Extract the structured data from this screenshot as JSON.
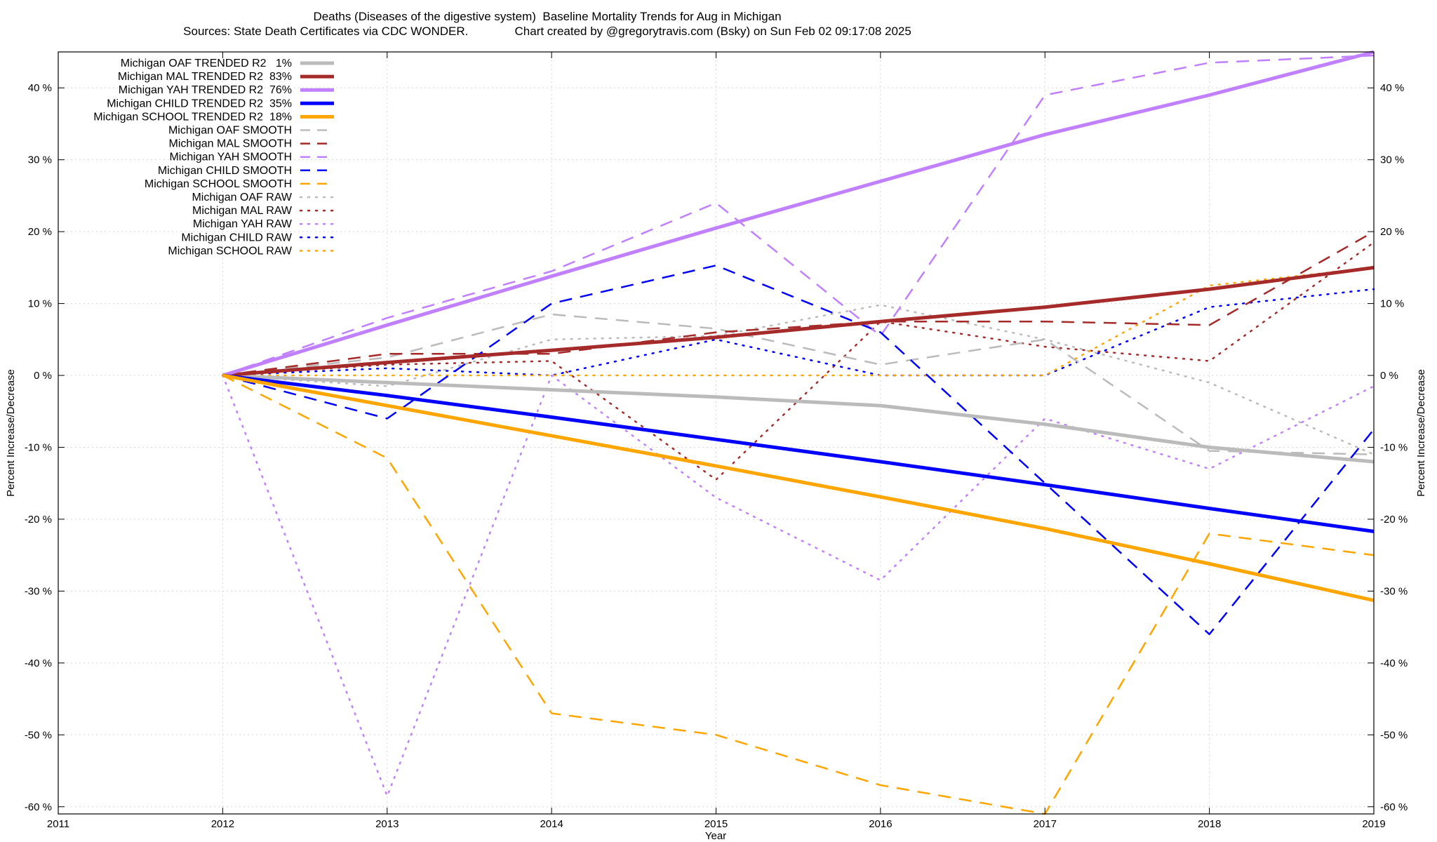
{
  "chart_data": {
    "type": "line",
    "title": "Deaths (Diseases of the digestive system)  Baseline Mortality Trends for Aug in Michigan",
    "subtitle": "Sources: State Death Certificates via CDC WONDER.              Chart created by @gregorytravis.com (Bsky) on Sun Feb 02 09:17:08 2025",
    "xlabel": "Year",
    "ylabel": "Percent Increase/Decrease",
    "y2label": "Percent Increase/Decrease",
    "xlim": [
      2011,
      2019
    ],
    "ylim": [
      -61,
      45
    ],
    "x_ticks": [
      2011,
      2012,
      2013,
      2014,
      2015,
      2016,
      2017,
      2018,
      2019
    ],
    "y_ticks": [
      -60,
      -50,
      -40,
      -30,
      -20,
      -10,
      0,
      10,
      20,
      30,
      40
    ],
    "y_tick_suffix": " %",
    "grid": true,
    "legend_position": "top-left",
    "series": [
      {
        "name": "Michigan OAF TRENDED R2   1%",
        "style": "trend",
        "color": "#bbbbbb",
        "x": [
          2012,
          2013,
          2014,
          2015,
          2016,
          2017,
          2018,
          2019
        ],
        "values": [
          0,
          -1,
          -2,
          -3,
          -4.2,
          -6.8,
          -10,
          -12
        ]
      },
      {
        "name": "Michigan MAL TRENDED R2  83%",
        "style": "trend",
        "color": "#a52a2a",
        "x": [
          2012,
          2013,
          2014,
          2015,
          2016,
          2017,
          2018,
          2019
        ],
        "values": [
          0,
          1.8,
          3.5,
          5.3,
          7.5,
          9.5,
          12,
          15
        ]
      },
      {
        "name": "Michigan YAH TRENDED R2  76%",
        "style": "trend",
        "color": "#c080ff",
        "x": [
          2012,
          2013,
          2014,
          2015,
          2016,
          2017,
          2018,
          2019
        ],
        "values": [
          0,
          7,
          13.8,
          20.5,
          27,
          33.5,
          39,
          45
        ]
      },
      {
        "name": "Michigan CHILD TRENDED R2  35%",
        "style": "trend",
        "color": "#0000ff",
        "x": [
          2012,
          2013,
          2014,
          2015,
          2016,
          2017,
          2018,
          2019
        ],
        "values": [
          0,
          -2.8,
          -5.8,
          -8.9,
          -12,
          -15.2,
          -18.5,
          -21.7
        ]
      },
      {
        "name": "Michigan SCHOOL TRENDED R2  18%",
        "style": "trend",
        "color": "#ffa500",
        "x": [
          2012,
          2013,
          2014,
          2015,
          2016,
          2017,
          2018,
          2019
        ],
        "values": [
          0,
          -4.2,
          -8.4,
          -12.6,
          -16.9,
          -21.3,
          -26.2,
          -31.3
        ]
      },
      {
        "name": "Michigan OAF SMOOTH",
        "style": "smooth",
        "color": "#bbbbbb",
        "x": [
          2012,
          2013,
          2014,
          2015,
          2016,
          2017,
          2018,
          2019
        ],
        "values": [
          0,
          2.5,
          8.5,
          6.5,
          1.5,
          5,
          -10.5,
          -11
        ]
      },
      {
        "name": "Michigan MAL SMOOTH",
        "style": "smooth",
        "color": "#a52a2a",
        "x": [
          2012,
          2013,
          2014,
          2015,
          2016,
          2017,
          2018,
          2019
        ],
        "values": [
          0,
          3,
          3,
          6,
          7.5,
          7.5,
          7,
          20
        ]
      },
      {
        "name": "Michigan YAH SMOOTH",
        "style": "smooth",
        "color": "#c080ff",
        "x": [
          2012,
          2013,
          2014,
          2015,
          2016,
          2017,
          2018,
          2019
        ],
        "values": [
          0,
          8,
          14.5,
          24,
          5.5,
          39,
          43.5,
          44.5
        ]
      },
      {
        "name": "Michigan CHILD SMOOTH",
        "style": "smooth",
        "color": "#0000ff",
        "x": [
          2012,
          2013,
          2014,
          2015,
          2016,
          2017,
          2018,
          2019
        ],
        "values": [
          0,
          -6,
          10,
          15.3,
          6,
          -15,
          -36,
          -7.5
        ]
      },
      {
        "name": "Michigan SCHOOL SMOOTH",
        "style": "smooth",
        "color": "#ffa500",
        "x": [
          2012,
          2013,
          2014,
          2015,
          2016,
          2017,
          2018,
          2019
        ],
        "values": [
          0,
          -11.5,
          -47,
          -50,
          -57,
          -61,
          -22,
          -25
        ]
      },
      {
        "name": "Michigan OAF RAW",
        "style": "raw",
        "color": "#bbbbbb",
        "x": [
          2012,
          2013,
          2014,
          2015,
          2016,
          2017,
          2018,
          2019
        ],
        "values": [
          0,
          -1.5,
          5,
          5.5,
          9.8,
          5,
          -1,
          -11
        ]
      },
      {
        "name": "Michigan MAL RAW",
        "style": "raw",
        "color": "#a52a2a",
        "x": [
          2012,
          2013,
          2014,
          2015,
          2016,
          2017,
          2018,
          2019
        ],
        "values": [
          0,
          1.5,
          2,
          -14.5,
          7.5,
          4,
          2,
          18.5
        ]
      },
      {
        "name": "Michigan YAH RAW",
        "style": "raw",
        "color": "#c080ff",
        "x": [
          2012,
          2013,
          2014,
          2015,
          2016,
          2017,
          2018,
          2019
        ],
        "values": [
          0,
          -58.5,
          0,
          -17,
          -28.5,
          -6,
          -13,
          -1.5
        ]
      },
      {
        "name": "Michigan CHILD RAW",
        "style": "raw",
        "color": "#0000ff",
        "x": [
          2012,
          2013,
          2014,
          2015,
          2016,
          2017,
          2018,
          2019
        ],
        "values": [
          0,
          1,
          0,
          5,
          0,
          0,
          9.5,
          12
        ]
      },
      {
        "name": "Michigan SCHOOL RAW",
        "style": "raw",
        "color": "#ffa500",
        "x": [
          2012,
          2013,
          2014,
          2015,
          2016,
          2017,
          2018,
          2019
        ],
        "values": [
          0,
          0,
          0,
          0,
          0,
          0,
          12.5,
          15
        ]
      }
    ]
  }
}
